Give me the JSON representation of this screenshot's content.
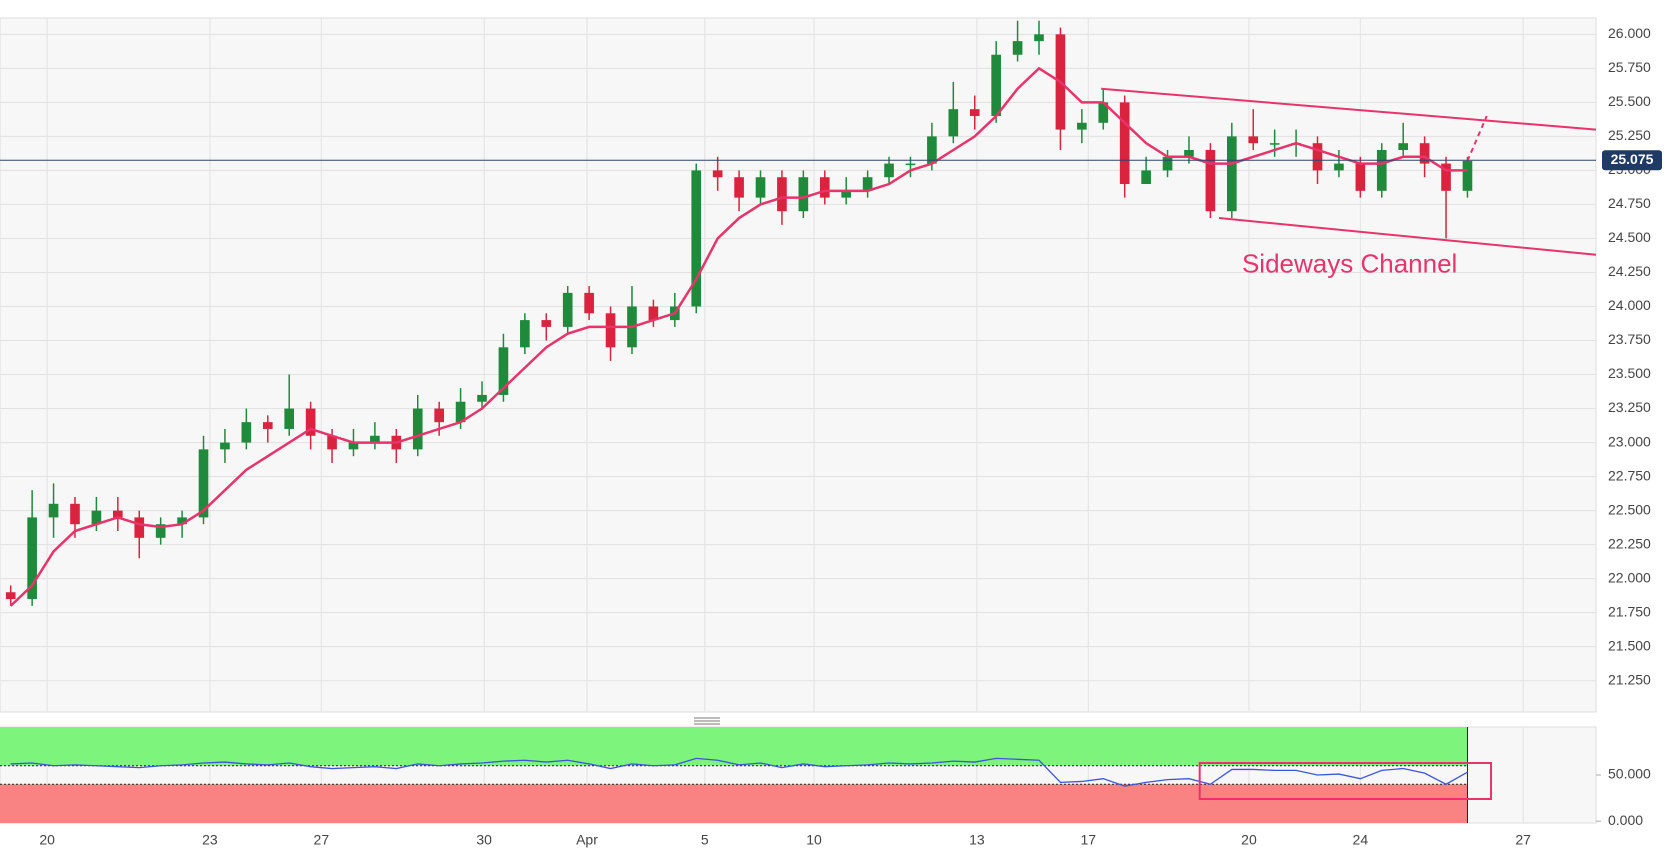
{
  "chart_data": [
    {
      "type": "candlestick",
      "x": [
        1,
        3,
        5,
        7,
        9,
        11,
        13,
        15,
        17,
        19,
        21,
        23,
        25,
        27,
        29,
        31,
        33,
        35,
        37,
        39,
        41,
        43,
        45,
        47,
        49,
        51,
        53,
        55,
        57,
        59,
        61,
        63,
        65,
        67,
        69,
        71,
        73,
        75,
        77,
        79,
        81,
        83,
        85,
        87,
        89,
        91,
        93,
        95,
        97,
        99,
        101,
        103,
        105,
        107,
        109,
        111,
        113,
        115,
        117,
        119,
        121,
        123,
        125,
        127,
        129,
        131,
        133,
        135,
        137
      ],
      "open": [
        21.9,
        21.85,
        22.45,
        22.55,
        22.4,
        22.5,
        22.45,
        22.3,
        22.4,
        22.45,
        22.95,
        23.0,
        23.15,
        23.1,
        23.25,
        23.05,
        22.95,
        23.0,
        23.05,
        22.95,
        23.25,
        23.15,
        23.3,
        23.35,
        23.7,
        23.9,
        23.85,
        24.1,
        23.95,
        23.7,
        24.0,
        23.9,
        24.0,
        25.0,
        24.95,
        24.8,
        24.95,
        24.7,
        24.95,
        24.8,
        24.85,
        24.95,
        25.05,
        25.05,
        25.25,
        25.45,
        25.4,
        25.85,
        25.95,
        26.0,
        25.3,
        25.35,
        25.5,
        24.9,
        25.0,
        25.1,
        25.15,
        24.7,
        25.25,
        25.2,
        25.2,
        25.2,
        25.0,
        25.05,
        24.85,
        25.15,
        25.2,
        25.05,
        24.85
      ],
      "high": [
        21.95,
        22.65,
        22.7,
        22.6,
        22.6,
        22.6,
        22.5,
        22.45,
        22.5,
        23.05,
        23.1,
        23.25,
        23.2,
        23.5,
        23.3,
        23.1,
        23.1,
        23.15,
        23.1,
        23.35,
        23.3,
        23.4,
        23.45,
        23.8,
        23.95,
        23.95,
        24.15,
        24.15,
        24.0,
        24.15,
        24.05,
        24.1,
        25.05,
        25.1,
        25.0,
        25.0,
        25.0,
        25.0,
        25.0,
        24.95,
        25.0,
        25.1,
        25.1,
        25.35,
        25.65,
        25.55,
        25.95,
        26.1,
        26.1,
        26.05,
        25.45,
        25.6,
        25.55,
        25.1,
        25.15,
        25.25,
        25.2,
        25.35,
        25.45,
        25.3,
        25.3,
        25.25,
        25.15,
        25.1,
        25.2,
        25.35,
        25.25,
        25.1,
        25.1
      ],
      "low": [
        21.8,
        21.8,
        22.3,
        22.3,
        22.35,
        22.35,
        22.15,
        22.25,
        22.3,
        22.4,
        22.85,
        22.95,
        23.0,
        23.05,
        22.95,
        22.85,
        22.9,
        22.95,
        22.85,
        22.9,
        23.05,
        23.1,
        23.25,
        23.3,
        23.65,
        23.75,
        23.8,
        23.9,
        23.6,
        23.65,
        23.85,
        23.85,
        23.95,
        24.85,
        24.7,
        24.75,
        24.6,
        24.65,
        24.75,
        24.75,
        24.8,
        24.9,
        24.95,
        25.0,
        25.2,
        25.3,
        25.35,
        25.8,
        25.85,
        25.15,
        25.2,
        25.3,
        24.8,
        24.9,
        24.95,
        25.05,
        24.65,
        24.65,
        25.15,
        25.1,
        25.1,
        24.9,
        24.95,
        24.8,
        24.8,
        25.1,
        24.95,
        24.5,
        24.8
      ],
      "close": [
        21.85,
        22.45,
        22.55,
        22.4,
        22.5,
        22.45,
        22.3,
        22.4,
        22.45,
        22.95,
        23.0,
        23.15,
        23.1,
        23.25,
        23.05,
        22.95,
        23.0,
        23.05,
        22.95,
        23.25,
        23.15,
        23.3,
        23.35,
        23.7,
        23.9,
        23.85,
        24.1,
        23.95,
        23.7,
        24.0,
        23.9,
        24.0,
        25.0,
        24.95,
        24.8,
        24.95,
        24.7,
        24.95,
        24.8,
        24.85,
        24.95,
        25.05,
        25.05,
        25.25,
        25.45,
        25.4,
        25.85,
        25.95,
        26.0,
        25.3,
        25.35,
        25.5,
        24.9,
        25.0,
        25.1,
        25.15,
        24.7,
        25.25,
        25.2,
        25.2,
        25.2,
        25.0,
        25.05,
        24.85,
        25.15,
        25.2,
        25.05,
        24.85,
        25.07
      ],
      "up_color": "#1f8a3c",
      "down_color": "#d9233f",
      "overlays": [
        {
          "color": "#e8336b",
          "values": [
            21.8,
            21.95,
            22.2,
            22.35,
            22.4,
            22.45,
            22.4,
            22.38,
            22.4,
            22.5,
            22.65,
            22.8,
            22.9,
            23.0,
            23.1,
            23.05,
            23.0,
            23.0,
            23.0,
            23.05,
            23.1,
            23.15,
            23.25,
            23.4,
            23.55,
            23.7,
            23.8,
            23.85,
            23.85,
            23.85,
            23.9,
            23.95,
            24.2,
            24.5,
            24.65,
            24.75,
            24.8,
            24.8,
            24.85,
            24.85,
            24.85,
            24.9,
            25.0,
            25.05,
            25.15,
            25.25,
            25.4,
            25.6,
            25.75,
            25.65,
            25.5,
            25.5,
            25.35,
            25.2,
            25.1,
            25.1,
            25.05,
            25.05,
            25.1,
            25.15,
            25.2,
            25.15,
            25.1,
            25.05,
            25.05,
            25.1,
            25.1,
            25.0,
            25.0
          ]
        }
      ],
      "channel": {
        "color": "#e8336b",
        "upper": {
          "x": [
            102.8,
            149
          ],
          "y": [
            25.6,
            25.3
          ]
        },
        "lower": {
          "x": [
            113.8,
            149
          ],
          "y": [
            24.65,
            24.38
          ]
        },
        "projection": {
          "x": [
            137,
            138.8
          ],
          "y": [
            25.07,
            25.4
          ]
        }
      },
      "annotation": {
        "text": "Sideways Channel",
        "x": 126,
        "y": 24.3
      },
      "last_price": {
        "value": 25.075,
        "label": "25.075"
      },
      "xlim": [
        0,
        149
      ],
      "ylim": [
        21.02,
        26.12
      ],
      "xticks": [
        {
          "value": 4.4,
          "label": "20"
        },
        {
          "value": 19.6,
          "label": "23"
        },
        {
          "value": 30,
          "label": "27"
        },
        {
          "value": 45.2,
          "label": "30"
        },
        {
          "value": 54.8,
          "label": "Apr"
        },
        {
          "value": 65.8,
          "label": "5"
        },
        {
          "value": 76,
          "label": "10"
        },
        {
          "value": 91.2,
          "label": "13"
        },
        {
          "value": 101.6,
          "label": "17"
        },
        {
          "value": 116.6,
          "label": "20"
        },
        {
          "value": 127,
          "label": "24"
        },
        {
          "value": 142.2,
          "label": "27"
        }
      ],
      "yticks": [
        {
          "value": 21.25,
          "label": "21.250"
        },
        {
          "value": 21.5,
          "label": "21.500"
        },
        {
          "value": 21.75,
          "label": "21.750"
        },
        {
          "value": 22,
          "label": "22.000"
        },
        {
          "value": 22.25,
          "label": "22.250"
        },
        {
          "value": 22.5,
          "label": "22.500"
        },
        {
          "value": 22.75,
          "label": "22.750"
        },
        {
          "value": 23,
          "label": "23.000"
        },
        {
          "value": 23.25,
          "label": "23.250"
        },
        {
          "value": 23.5,
          "label": "23.500"
        },
        {
          "value": 23.75,
          "label": "23.750"
        },
        {
          "value": 24,
          "label": "24.000"
        },
        {
          "value": 24.25,
          "label": "24.250"
        },
        {
          "value": 24.5,
          "label": "24.500"
        },
        {
          "value": 24.75,
          "label": "24.750"
        },
        {
          "value": 25,
          "label": "25.000"
        },
        {
          "value": 25.25,
          "label": "25.250"
        },
        {
          "value": 25.5,
          "label": "25.500"
        },
        {
          "value": 25.75,
          "label": "25.750"
        },
        {
          "value": 26,
          "label": "26.000"
        }
      ],
      "grid": true
    },
    {
      "type": "line",
      "x": [
        1,
        3,
        5,
        7,
        9,
        11,
        13,
        15,
        17,
        19,
        21,
        23,
        25,
        27,
        29,
        31,
        33,
        35,
        37,
        39,
        41,
        43,
        45,
        47,
        49,
        51,
        53,
        55,
        57,
        59,
        61,
        63,
        65,
        67,
        69,
        71,
        73,
        75,
        77,
        79,
        81,
        83,
        85,
        87,
        89,
        91,
        93,
        95,
        97,
        99,
        101,
        103,
        105,
        107,
        109,
        111,
        113,
        115,
        117,
        119,
        121,
        123,
        125,
        127,
        129,
        131,
        133,
        135,
        137
      ],
      "values": [
        62,
        63,
        60,
        61,
        60,
        59,
        58,
        60,
        61,
        63,
        64,
        62,
        61,
        63,
        59,
        57,
        58,
        59,
        57,
        62,
        60,
        62,
        63,
        65,
        66,
        64,
        66,
        62,
        57,
        62,
        60,
        61,
        68,
        66,
        61,
        63,
        58,
        62,
        59,
        60,
        61,
        63,
        62,
        63,
        65,
        64,
        68,
        67,
        66,
        42,
        43,
        46,
        38,
        42,
        45,
        46,
        40,
        56,
        56,
        55,
        55,
        50,
        51,
        46,
        55,
        57,
        52,
        40,
        53
      ],
      "color": "#3a55e0",
      "upper_level": 60,
      "lower_level": 40,
      "upper_color": "#7df57d",
      "lower_color": "#f98383",
      "highlight": {
        "color": "#e8336b",
        "x": [
          112,
          139.2
        ],
        "y": [
          24,
          63
        ]
      },
      "xlim": [
        0,
        149
      ],
      "ylim": [
        -2,
        102
      ],
      "yticks": [
        {
          "value": 0,
          "label": "0.000"
        },
        {
          "value": 50,
          "label": "50.000"
        }
      ]
    }
  ]
}
